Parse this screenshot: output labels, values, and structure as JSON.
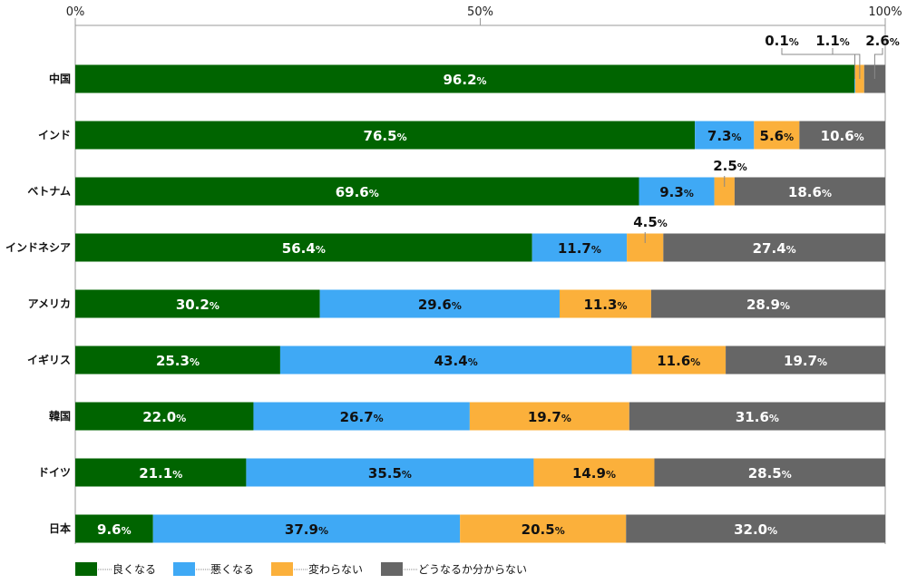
{
  "chart_data": {
    "type": "bar",
    "orientation": "horizontal",
    "stacked": true,
    "xlim": [
      0,
      100
    ],
    "x_ticks": [
      "0%",
      "50%",
      "100%"
    ],
    "categories": [
      "中国",
      "インド",
      "ベトナム",
      "インドネシア",
      "アメリカ",
      "イギリス",
      "韓国",
      "ドイツ",
      "日本"
    ],
    "series": [
      {
        "name": "良くなる",
        "color": "#006400",
        "values": [
          96.2,
          76.5,
          69.6,
          56.4,
          30.2,
          25.3,
          22.0,
          21.1,
          9.6
        ]
      },
      {
        "name": "悪くなる",
        "color": "#3fa9f5",
        "values": [
          0.1,
          7.3,
          9.3,
          11.7,
          29.6,
          43.4,
          26.7,
          35.5,
          37.9
        ]
      },
      {
        "name": "変わらない",
        "color": "#fbb03b",
        "values": [
          1.1,
          5.6,
          2.5,
          4.5,
          11.3,
          11.6,
          19.7,
          14.9,
          20.5
        ]
      },
      {
        "name": "どうなるか分からない",
        "color": "#666666",
        "values": [
          2.6,
          10.6,
          18.6,
          27.4,
          28.9,
          19.7,
          31.6,
          28.5,
          32.0
        ]
      }
    ],
    "value_suffix": "%",
    "legend_position": "bottom-left",
    "grid": false
  }
}
